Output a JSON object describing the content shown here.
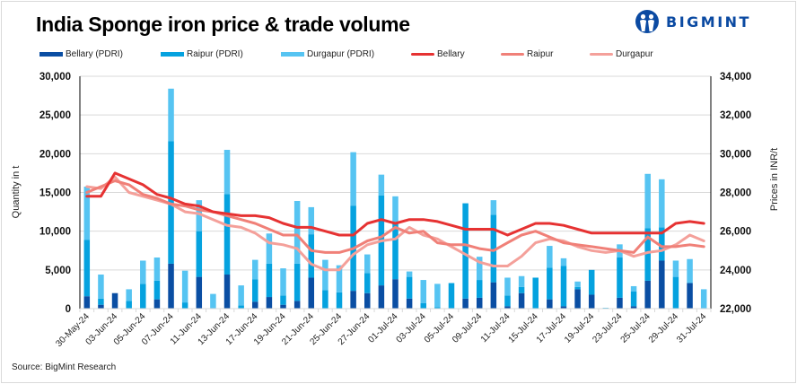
{
  "title": "India Sponge iron price & trade volume",
  "logo": {
    "icon": "bigmint-people-icon",
    "text": "BIGMINT"
  },
  "source": "Source: BigMint Research",
  "legend": [
    {
      "label": "Bellary (PDRI)",
      "type": "bar",
      "color": "#0a4ea3"
    },
    {
      "label": "Raipur (PDRI)",
      "type": "bar",
      "color": "#05a2df"
    },
    {
      "label": "Durgapur (PDRI)",
      "type": "bar",
      "color": "#56c4f2"
    },
    {
      "label": "Bellary",
      "type": "line",
      "color": "#e63232"
    },
    {
      "label": "Raipur",
      "type": "line",
      "color": "#f08078"
    },
    {
      "label": "Durgapur",
      "type": "line",
      "color": "#f4a09a"
    }
  ],
  "chart_data": {
    "type": "bar",
    "subtype": "stacked bar with line overlay (dual axis)",
    "title": "India Sponge iron price & trade volume",
    "xlabel": "",
    "ylabel": "Quantity in t",
    "y2label": "Prices in INR/t",
    "ylim": [
      0,
      30000
    ],
    "y2lim": [
      22000,
      34000
    ],
    "yticks": [
      "0",
      "5,000",
      "10,000",
      "15,000",
      "20,000",
      "25,000",
      "30,000"
    ],
    "y2ticks": [
      "22,000",
      "24,000",
      "26,000",
      "28,000",
      "30,000",
      "32,000",
      "34,000"
    ],
    "grid": true,
    "legend_position": "top",
    "x_tick_labels": [
      "30-May-24",
      "03-Jun-24",
      "05-Jun-24",
      "07-Jun-24",
      "11-Jun-24",
      "13-Jun-24",
      "17-Jun-24",
      "19-Jun-24",
      "21-Jun-24",
      "25-Jun-24",
      "27-Jun-24",
      "01-Jul-24",
      "03-Jul-24",
      "05-Jul-24",
      "09-Jul-24",
      "11-Jul-24",
      "15-Jul-24",
      "17-Jul-24",
      "19-Jul-24",
      "23-Jul-24",
      "25-Jul-24",
      "29-Jul-24",
      "31-Jul-24"
    ],
    "bar_series": [
      {
        "name": "Bellary (PDRI)",
        "color": "#0a4ea3",
        "values": [
          1600,
          500,
          2000,
          0,
          0,
          1200,
          5800,
          0,
          4100,
          0,
          4400,
          0,
          900,
          1500,
          500,
          1000,
          4000,
          0,
          0,
          2300,
          2000,
          3000,
          3800,
          1300,
          0,
          0,
          0,
          1300,
          1400,
          3400,
          300,
          2000,
          0,
          1200,
          300,
          2500,
          1800,
          0,
          1400,
          300,
          3600,
          6200,
          0,
          3300,
          0
        ]
      },
      {
        "name": "Raipur (PDRI)",
        "color": "#05a2df",
        "values": [
          7300,
          800,
          0,
          1000,
          3200,
          2400,
          15800,
          800,
          5900,
          0,
          10400,
          400,
          2900,
          4300,
          1200,
          4800,
          5600,
          2400,
          2100,
          11000,
          2600,
          11600,
          7400,
          2800,
          700,
          200,
          3300,
          12300,
          2300,
          8700,
          1400,
          800,
          4000,
          4100,
          5200,
          300,
          3200,
          100,
          5200,
          1900,
          6800,
          4300,
          4100,
          0,
          0
        ]
      },
      {
        "name": "Durgapur (PDRI)",
        "color": "#56c4f2",
        "values": [
          6850,
          3100,
          0,
          1500,
          3000,
          3000,
          6800,
          4100,
          4000,
          1900,
          5700,
          2600,
          2500,
          3900,
          3500,
          8100,
          3500,
          3900,
          3500,
          6900,
          2400,
          2700,
          3300,
          700,
          3000,
          3000,
          0,
          0,
          3000,
          1900,
          2300,
          1400,
          0,
          2800,
          1000,
          700,
          0,
          0,
          1700,
          700,
          7000,
          6200,
          2100,
          3100,
          2500
        ]
      }
    ],
    "line_series": [
      {
        "name": "Bellary",
        "color": "#e63232",
        "values": [
          27800,
          27800,
          29000,
          28700,
          28400,
          27900,
          27700,
          27400,
          27300,
          27000,
          26900,
          26800,
          26800,
          26700,
          26400,
          26200,
          26200,
          26000,
          25800,
          25800,
          26400,
          26600,
          26400,
          26600,
          26600,
          26500,
          26300,
          26100,
          26100,
          26100,
          25800,
          26100,
          26400,
          26400,
          26300,
          26100,
          25900,
          25900,
          25900,
          25900,
          25900,
          25900,
          26400,
          26500,
          26400
        ]
      },
      {
        "name": "Raipur",
        "color": "#f08078",
        "values": [
          28000,
          28300,
          28600,
          28400,
          27900,
          27700,
          27400,
          27300,
          27100,
          27000,
          26800,
          26600,
          26400,
          26100,
          25800,
          25800,
          25000,
          24900,
          24900,
          25100,
          25500,
          25700,
          26200,
          25900,
          26000,
          25400,
          25300,
          25300,
          25100,
          25000,
          25400,
          25800,
          26000,
          25700,
          25400,
          25300,
          25200,
          25100,
          25000,
          24900,
          25700,
          25200,
          25200,
          25300,
          25200
        ]
      },
      {
        "name": "Durgapur",
        "color": "#f4a09a",
        "values": [
          28300,
          28200,
          28800,
          28000,
          27800,
          27600,
          27400,
          27000,
          26900,
          26600,
          26300,
          26200,
          25900,
          25400,
          25300,
          25100,
          24300,
          24000,
          24000,
          24800,
          25300,
          25500,
          25600,
          26200,
          25800,
          25600,
          25200,
          24800,
          24400,
          24200,
          24200,
          24700,
          25400,
          25600,
          25500,
          25200,
          25000,
          24900,
          25000,
          24700,
          24900,
          25000,
          25300,
          25800,
          25500
        ]
      }
    ]
  }
}
